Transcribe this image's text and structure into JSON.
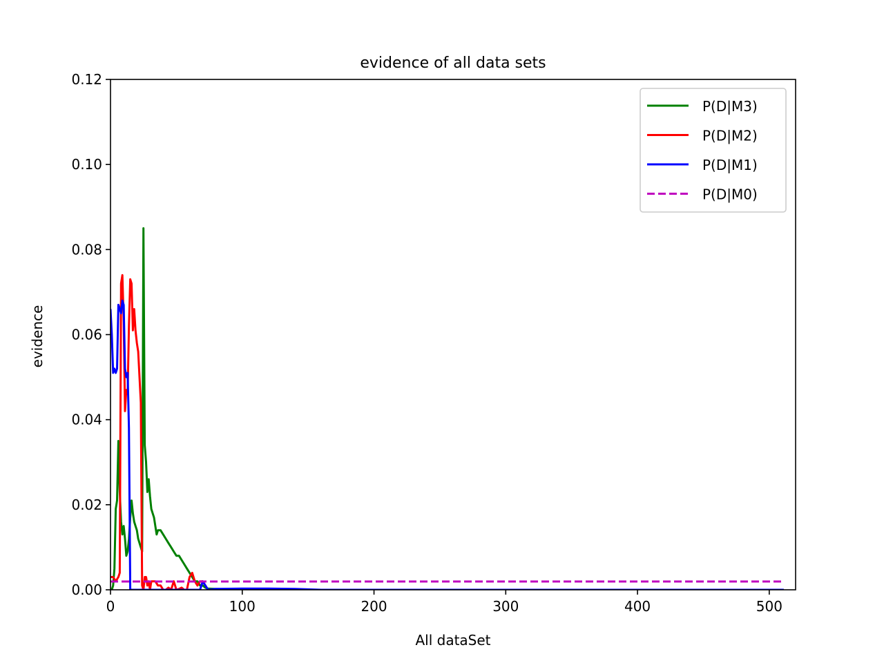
{
  "chart_data": {
    "type": "line",
    "title": "evidence of all data sets",
    "xlabel": "All dataSet",
    "ylabel": "evidence",
    "xlim": [
      0,
      520
    ],
    "ylim": [
      0,
      0.12
    ],
    "xticks": [
      0,
      100,
      200,
      300,
      400,
      500
    ],
    "xtick_labels": [
      "0",
      "100",
      "200",
      "300",
      "400",
      "500"
    ],
    "yticks": [
      0,
      0.02,
      0.04,
      0.06,
      0.08,
      0.1,
      0.12
    ],
    "ytick_labels": [
      "0.00",
      "0.02",
      "0.04",
      "0.06",
      "0.08",
      "0.10",
      "0.12"
    ],
    "grid": false,
    "legend_position": "top-right",
    "series": [
      {
        "name": "P(D|M3)",
        "color": "#008000",
        "style": "solid",
        "x": [
          0,
          1,
          2,
          3,
          4,
          5,
          6,
          7,
          8,
          9,
          10,
          11,
          12,
          13,
          14,
          15,
          16,
          17,
          18,
          19,
          20,
          21,
          22,
          23,
          24,
          25,
          26,
          27,
          28,
          29,
          30,
          31,
          32,
          33,
          34,
          35,
          36,
          37,
          38,
          40,
          42,
          44,
          46,
          48,
          50,
          52,
          54,
          56,
          58,
          60,
          62,
          64,
          66,
          68,
          70,
          72,
          74,
          80,
          90,
          100,
          120,
          140,
          160,
          200,
          300,
          400,
          511
        ],
        "y": [
          0.0,
          0.0,
          0.001,
          0.005,
          0.019,
          0.021,
          0.035,
          0.023,
          0.016,
          0.013,
          0.015,
          0.012,
          0.008,
          0.009,
          0.012,
          0.017,
          0.021,
          0.018,
          0.016,
          0.015,
          0.014,
          0.012,
          0.011,
          0.01,
          0.009,
          0.085,
          0.034,
          0.03,
          0.023,
          0.026,
          0.022,
          0.019,
          0.018,
          0.017,
          0.015,
          0.013,
          0.014,
          0.014,
          0.014,
          0.013,
          0.012,
          0.011,
          0.01,
          0.009,
          0.008,
          0.008,
          0.007,
          0.006,
          0.005,
          0.004,
          0.003,
          0.002,
          0.002,
          0.001,
          0.001,
          0.0005,
          0.0003,
          0.0002,
          0.0001,
          0.0001,
          0.0,
          0.0,
          0.0,
          0.0,
          0.0,
          0.0,
          0.0
        ]
      },
      {
        "name": "P(D|M2)",
        "color": "#ff0000",
        "style": "solid",
        "x": [
          0,
          2,
          4,
          6,
          7,
          8,
          9,
          10,
          11,
          12,
          13,
          14,
          15,
          16,
          17,
          18,
          19,
          20,
          21,
          22,
          23,
          24,
          25,
          26,
          27,
          28,
          29,
          30,
          31,
          32,
          34,
          36,
          38,
          40,
          42,
          44,
          46,
          48,
          50,
          52,
          54,
          56,
          58,
          60,
          62,
          64,
          66,
          68,
          70,
          72,
          74,
          80,
          100,
          150,
          200
        ],
        "y": [
          0.003,
          0.003,
          0.002,
          0.003,
          0.004,
          0.072,
          0.074,
          0.063,
          0.042,
          0.047,
          0.046,
          0.062,
          0.073,
          0.072,
          0.061,
          0.066,
          0.061,
          0.058,
          0.056,
          0.05,
          0.044,
          0.001,
          0.0,
          0.003,
          0.003,
          0.001,
          0.002,
          0.0,
          0.002,
          0.002,
          0.002,
          0.001,
          0.001,
          0.0,
          0.0,
          0.0005,
          0.0,
          0.002,
          0.0,
          0.0002,
          0.0005,
          0.0,
          0.0,
          0.003,
          0.004,
          0.002,
          0.001,
          0.002,
          0.002,
          0.001,
          0.0,
          0.0,
          0.0,
          0.0,
          0.0
        ]
      },
      {
        "name": "P(D|M1)",
        "color": "#0000ff",
        "style": "solid",
        "x": [
          0,
          1,
          2,
          3,
          4,
          5,
          6,
          7,
          8,
          9,
          10,
          11,
          12,
          13,
          14,
          15,
          16,
          17,
          18,
          20,
          25,
          30,
          40,
          50,
          60,
          66,
          68,
          70,
          72,
          74,
          80,
          100,
          120,
          140,
          150,
          160,
          200,
          300,
          400,
          511
        ],
        "y": [
          0.066,
          0.06,
          0.051,
          0.052,
          0.051,
          0.052,
          0.067,
          0.066,
          0.065,
          0.068,
          0.067,
          0.052,
          0.05,
          0.051,
          0.038,
          0.0,
          0.0,
          0.0,
          0.0,
          0.0,
          0.0,
          0.0,
          0.0,
          0.0,
          0.0,
          0.0,
          0.0,
          0.002,
          0.001,
          0.0,
          0.0002,
          0.0003,
          0.0003,
          0.0002,
          0.0001,
          0.0,
          0.0,
          0.0,
          0.0,
          0.0
        ]
      },
      {
        "name": "P(D|M0)",
        "color": "#bf00bf",
        "style": "dashed",
        "x": [
          0,
          511
        ],
        "y": [
          0.00195,
          0.00195
        ]
      }
    ]
  }
}
